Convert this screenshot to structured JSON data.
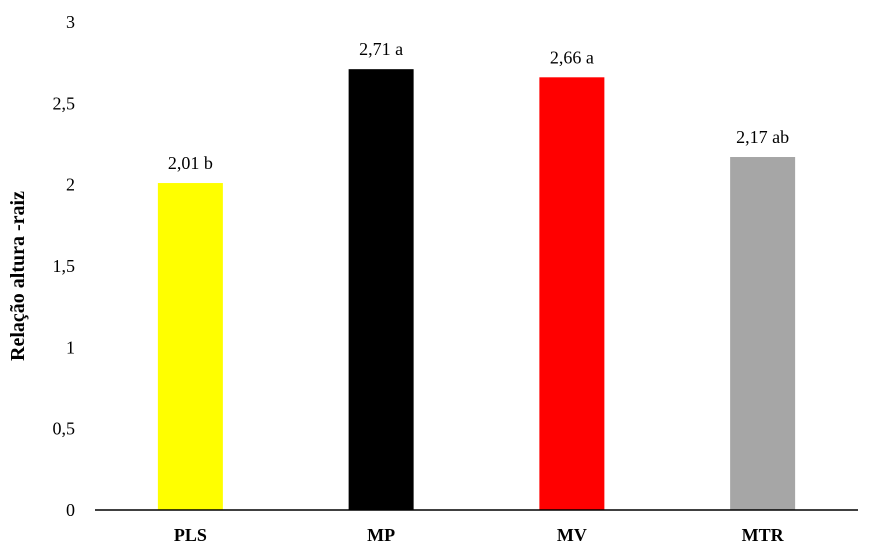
{
  "chart_data": {
    "type": "bar",
    "categories": [
      "PLS",
      "MP",
      "MV",
      "MTR"
    ],
    "values": [
      2.01,
      2.71,
      2.66,
      2.17
    ],
    "data_labels": [
      "2,01 b",
      "2,71 a",
      "2,66 a",
      "2,17 ab"
    ],
    "colors": [
      "#ffff00",
      "#000000",
      "#ff0000",
      "#a6a6a6"
    ],
    "ylabel": "Relação altura -raiz",
    "xlabel": "",
    "ylim": [
      0,
      3
    ],
    "yticks": [
      0,
      0.5,
      1,
      1.5,
      2,
      2.5,
      3
    ],
    "ytick_labels": [
      "0",
      "0,5",
      "1",
      "1,5",
      "2",
      "2,5",
      "3"
    ],
    "grid": false,
    "legend": "none"
  }
}
